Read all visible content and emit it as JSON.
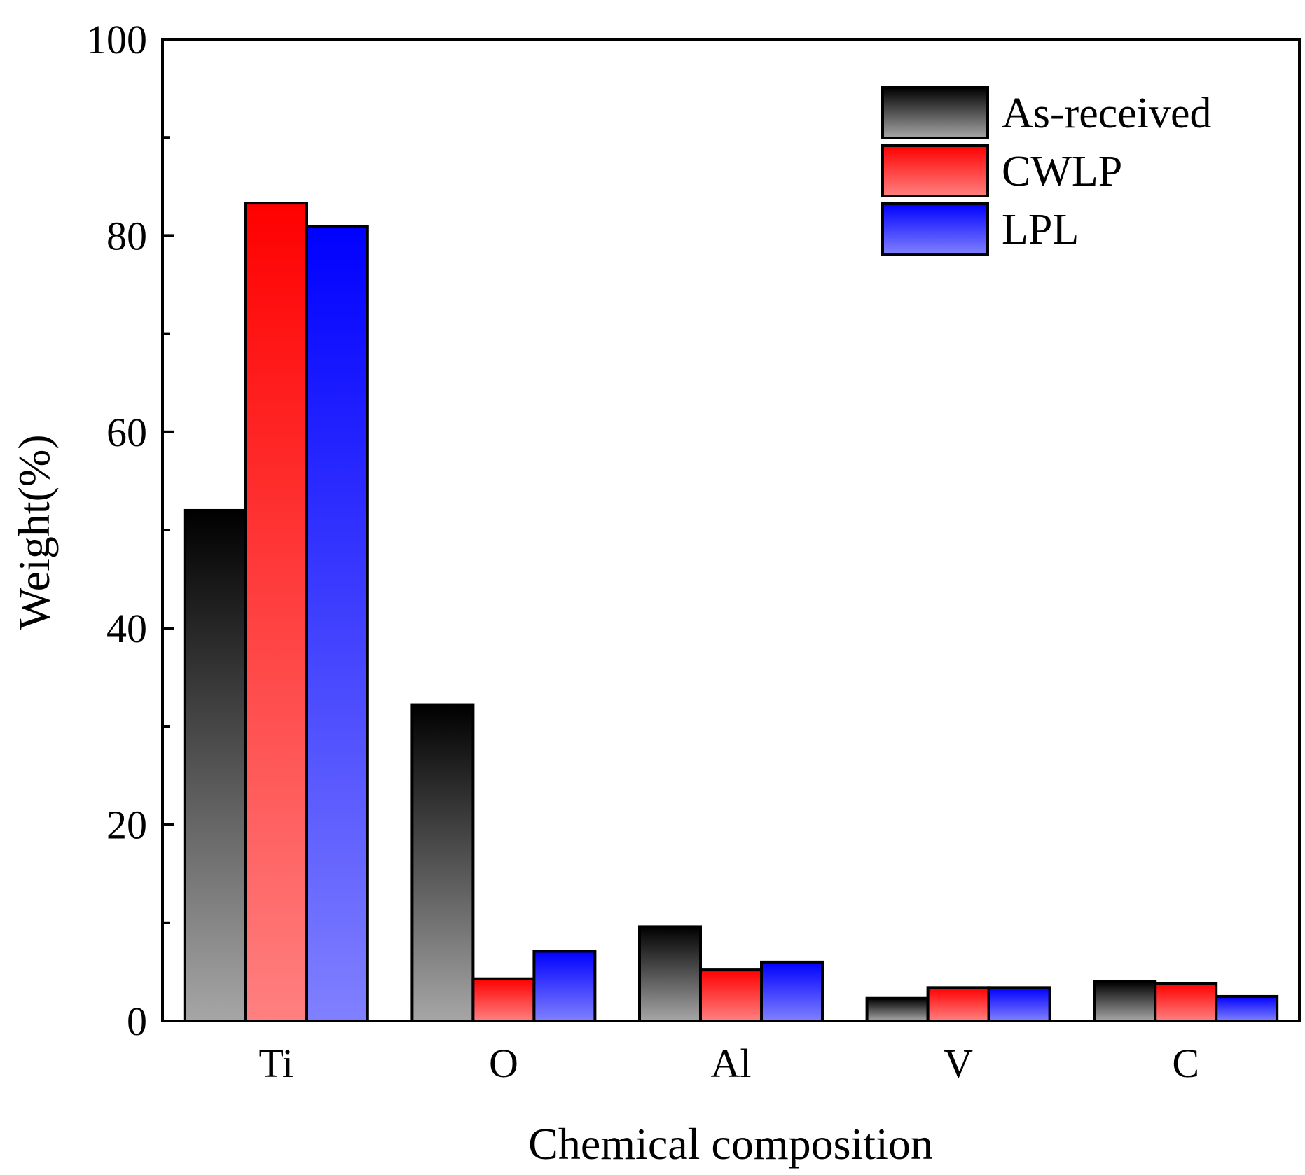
{
  "chart_data": {
    "type": "bar",
    "title": "",
    "xlabel": "Chemical composition",
    "ylabel": "Weight(%)",
    "ylim": [
      0,
      100
    ],
    "yticks": [
      0,
      20,
      40,
      60,
      80,
      100
    ],
    "yticks_labels": [
      "0",
      "20",
      "40",
      "60",
      "80",
      "100"
    ],
    "grid": false,
    "legend_position": "top-right",
    "categories": [
      "Ti",
      "O",
      "Al",
      "V",
      "C"
    ],
    "series": [
      {
        "name": "As-received",
        "values": [
          52.0,
          32.2,
          9.6,
          2.3,
          4.0
        ],
        "top_color": "#000000",
        "bottom_color": "#a6a6a6"
      },
      {
        "name": "CWLP",
        "values": [
          83.3,
          4.3,
          5.2,
          3.4,
          3.8
        ],
        "top_color": "#ff0000",
        "bottom_color": "#ff8080"
      },
      {
        "name": "LPL",
        "values": [
          80.9,
          7.1,
          6.0,
          3.4,
          2.5
        ],
        "top_color": "#0000ff",
        "bottom_color": "#8080ff"
      }
    ]
  }
}
